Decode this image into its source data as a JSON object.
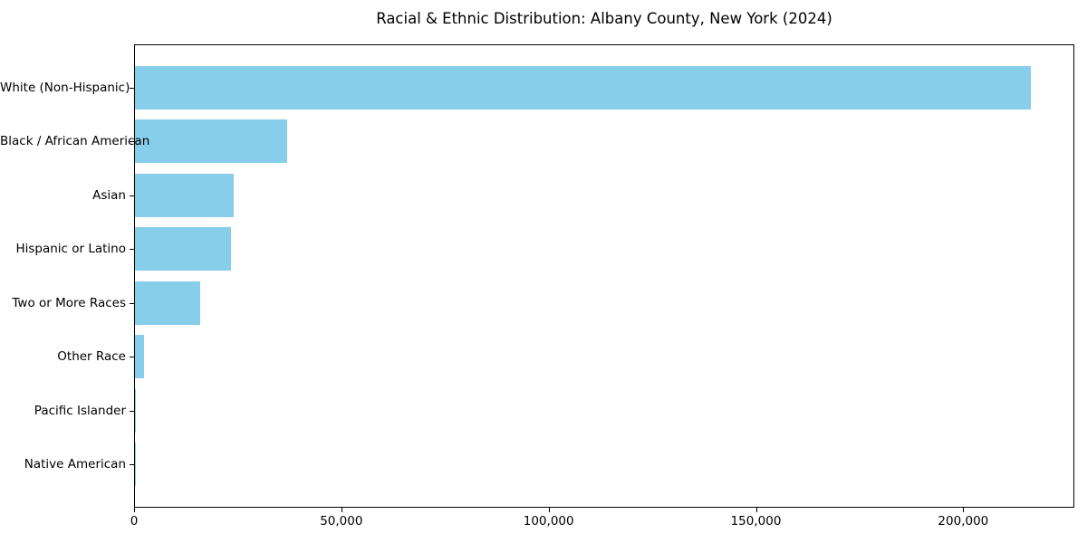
{
  "figure": {
    "background": "#ffffff",
    "text_color": "#000000"
  },
  "chart_data": {
    "type": "bar",
    "orientation": "horizontal",
    "title": "Racial & Ethnic Distribution: Albany County, New York (2024)",
    "xlabel": "",
    "ylabel": "",
    "categories": [
      "White (Non-Hispanic)",
      "Black / African American",
      "Asian",
      "Hispanic or Latino",
      "Two or More Races",
      "Other Race",
      "Pacific Islander",
      "Native American"
    ],
    "values": [
      216000,
      36700,
      23800,
      23200,
      15700,
      2100,
      250,
      80
    ],
    "bar_color": "#87CEEB",
    "xlim": [
      0,
      226800
    ],
    "x_ticks": [
      0,
      50000,
      100000,
      150000,
      200000
    ],
    "x_tick_labels": [
      "0",
      "50,000",
      "100,000",
      "150,000",
      "200,000"
    ],
    "grid": false,
    "legend": "none"
  }
}
